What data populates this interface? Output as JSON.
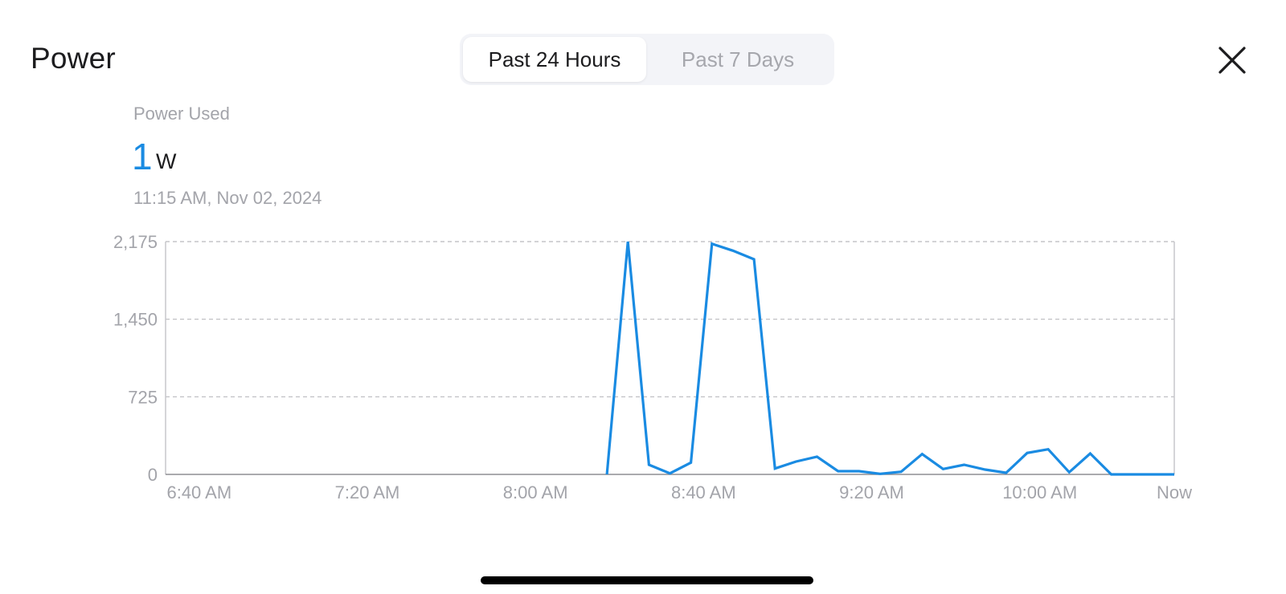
{
  "header": {
    "title": "Power"
  },
  "segmented": {
    "options": [
      "Past 24 Hours",
      "Past 7 Days"
    ],
    "selected": "Past 24 Hours"
  },
  "close_icon": "close-icon",
  "metric": {
    "label": "Power Used",
    "value": "1",
    "unit": "W",
    "timestamp": "11:15 AM, Nov 02, 2024"
  },
  "colors": {
    "accent": "#1a8be2",
    "grid": "#b9b9be",
    "axis_text": "#a3a4aa"
  },
  "chart_data": {
    "type": "line",
    "title": "",
    "xlabel": "",
    "ylabel": "",
    "x_ticks": [
      "6:40 AM",
      "7:20 AM",
      "8:00 AM",
      "8:40 AM",
      "9:20 AM",
      "10:00 AM",
      "Now"
    ],
    "x_tick_minutes": [
      0,
      40,
      80,
      120,
      160,
      200,
      240
    ],
    "y_ticks": [
      "0",
      "725",
      "1,450",
      "2,175"
    ],
    "ylim": [
      0,
      2175
    ],
    "xlim_minutes": [
      -8,
      232
    ],
    "grid": "horizontal-dashed",
    "series": [
      {
        "x_minutes": [
          97,
          102,
          107,
          112,
          117,
          122,
          127,
          132,
          137,
          142,
          147,
          152,
          157,
          162,
          167,
          172,
          177,
          182,
          187,
          192,
          197,
          202,
          207,
          212,
          217,
          222,
          232
        ],
        "values": [
          0,
          2175,
          90,
          10,
          110,
          2155,
          2090,
          2010,
          55,
          120,
          165,
          30,
          30,
          5,
          25,
          190,
          50,
          90,
          45,
          15,
          200,
          235,
          20,
          195,
          0,
          0,
          0
        ]
      }
    ]
  }
}
